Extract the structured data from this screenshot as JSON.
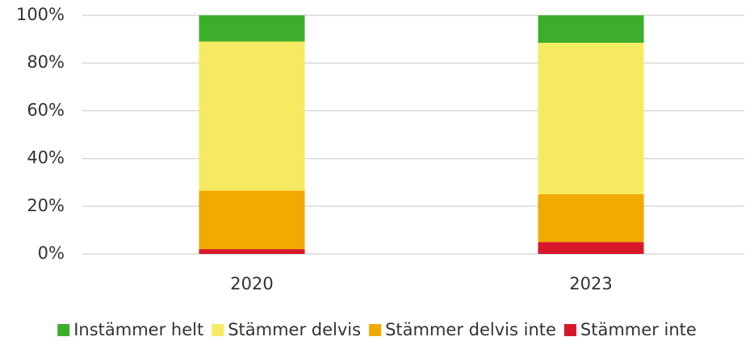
{
  "chart_data": {
    "type": "stacked_bar",
    "categories": [
      "2020",
      "2023"
    ],
    "series": [
      {
        "name": "Instämmer helt",
        "color": "#3dae2b",
        "values": [
          11,
          11.5
        ]
      },
      {
        "name": "Stämmer delvis",
        "color": "#f7ea63",
        "values": [
          62.5,
          63.5
        ]
      },
      {
        "name": "Stämmer delvis inte",
        "color": "#f2a900",
        "values": [
          24.5,
          20
        ]
      },
      {
        "name": "Stämmer inte",
        "color": "#d7182a",
        "values": [
          2,
          5
        ]
      }
    ],
    "ylim": [
      0,
      100
    ],
    "yticks": [
      {
        "value": 0,
        "label": "0%"
      },
      {
        "value": 20,
        "label": "20%"
      },
      {
        "value": 40,
        "label": "40%"
      },
      {
        "value": 60,
        "label": "60%"
      },
      {
        "value": 80,
        "label": "80%"
      },
      {
        "value": 100,
        "label": "100%"
      }
    ],
    "grid": true,
    "legend": "bottom"
  }
}
